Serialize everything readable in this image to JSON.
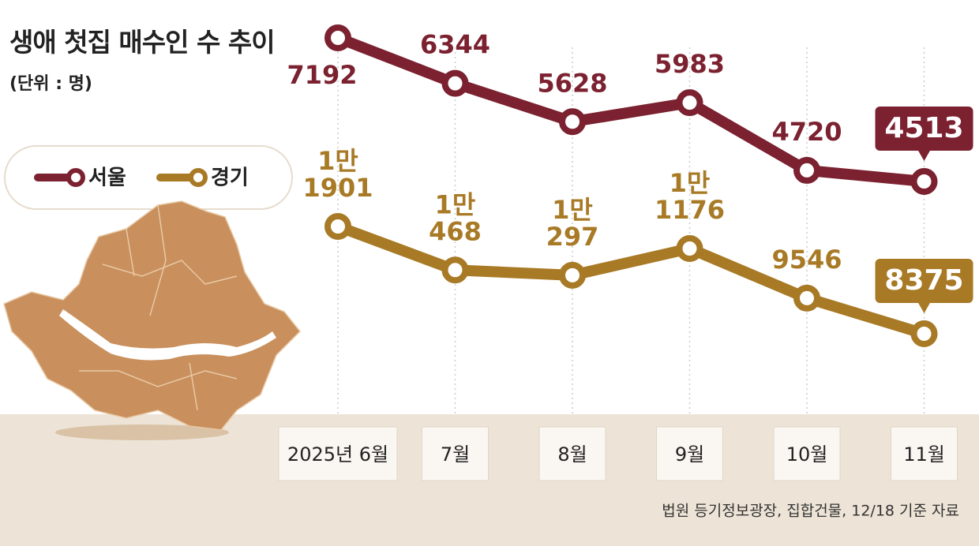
{
  "chart_data": {
    "type": "line",
    "title": "생애 첫집 매수인 수 추이",
    "unit": "(단위 : 명)",
    "categories": [
      "2025년 6월",
      "7월",
      "8월",
      "9월",
      "10월",
      "11월"
    ],
    "series": [
      {
        "name": "서울",
        "color": "#7b2130",
        "values": [
          7192,
          6344,
          5628,
          5983,
          4720,
          4513
        ]
      },
      {
        "name": "경기",
        "color": "#a87a26",
        "values": [
          11901,
          10468,
          10297,
          11176,
          9546,
          8375
        ],
        "value_labels": [
          "1만\n1901",
          "1만\n468",
          "1만\n297",
          "1만\n1176",
          "9546",
          "8375"
        ]
      }
    ],
    "source": "법원 등기정보광장, 집합건물, 12/18 기준 자료"
  }
}
